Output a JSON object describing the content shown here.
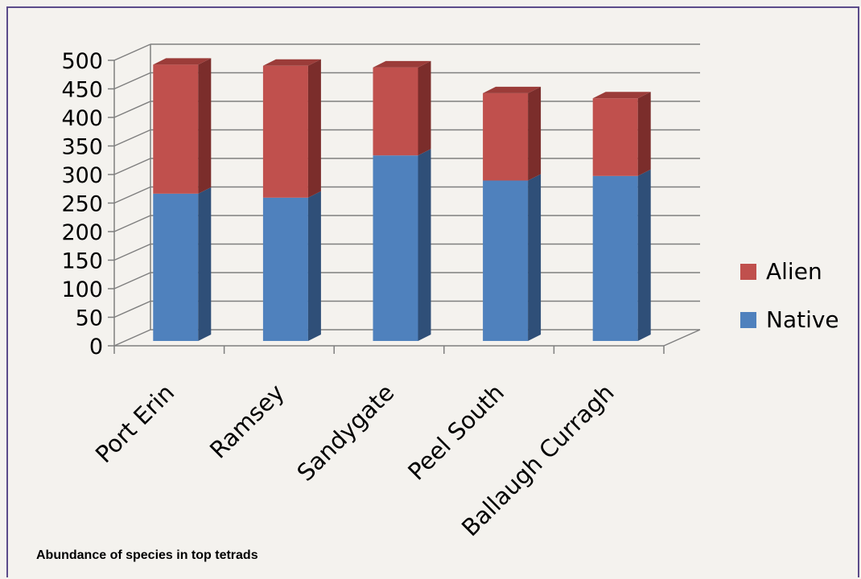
{
  "caption": "Abundance of species in top tetrads",
  "chart_data": {
    "type": "bar",
    "stacked": true,
    "three_d": true,
    "categories": [
      "Port Erin",
      "Ramsey",
      "Sandygate",
      "Peel South",
      "Ballaugh Curragh"
    ],
    "series": [
      {
        "name": "Native",
        "color": "#4f81bd",
        "side_color": "#2f4f78",
        "values": [
          258,
          251,
          325,
          281,
          289
        ]
      },
      {
        "name": "Alien",
        "color": "#c0504d",
        "side_color": "#7b2d2b",
        "values": [
          226,
          231,
          154,
          153,
          136
        ]
      }
    ],
    "ylim": [
      0,
      500
    ],
    "yticks": [
      "0",
      "50",
      "100",
      "150",
      "200",
      "250",
      "300",
      "350",
      "400",
      "450",
      "500"
    ],
    "grid": true,
    "legend_position": "right",
    "legend_order": [
      "Alien",
      "Native"
    ]
  }
}
